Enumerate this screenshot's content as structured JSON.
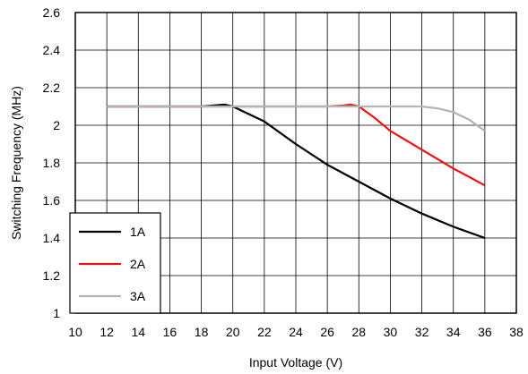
{
  "chart_data": {
    "type": "line",
    "xlabel": "Input Voltage (V)",
    "ylabel": "Switching Frequency (MHz)",
    "xlim": [
      10,
      38
    ],
    "ylim": [
      1,
      2.6
    ],
    "xticks": [
      "10",
      "12",
      "14",
      "16",
      "18",
      "20",
      "22",
      "24",
      "26",
      "28",
      "30",
      "32",
      "34",
      "36",
      "38"
    ],
    "yticks": [
      "1",
      "1.2",
      "1.4",
      "1.6",
      "1.8",
      "2",
      "2.2",
      "2.4",
      "2.6"
    ],
    "grid": true,
    "legend_position": "bottom-left",
    "series": [
      {
        "name": "1A",
        "color": "#000000",
        "x": [
          12,
          14,
          16,
          18,
          19.5,
          20,
          21,
          22,
          24,
          26,
          28,
          30,
          32,
          34,
          36
        ],
        "y": [
          2.1,
          2.1,
          2.1,
          2.1,
          2.11,
          2.1,
          2.06,
          2.02,
          1.9,
          1.79,
          1.7,
          1.61,
          1.53,
          1.46,
          1.4
        ]
      },
      {
        "name": "2A",
        "color": "#ee1111",
        "x": [
          12,
          14,
          16,
          18,
          20,
          22,
          24,
          26,
          27,
          27.5,
          28,
          29,
          30,
          32,
          34,
          36
        ],
        "y": [
          2.1,
          2.1,
          2.1,
          2.1,
          2.1,
          2.1,
          2.1,
          2.1,
          2.105,
          2.11,
          2.1,
          2.04,
          1.97,
          1.87,
          1.77,
          1.68
        ]
      },
      {
        "name": "3A",
        "color": "#b4b4b4",
        "x": [
          12,
          14,
          16,
          18,
          20,
          22,
          24,
          26,
          28,
          30,
          31,
          32,
          33,
          34,
          35,
          36
        ],
        "y": [
          2.1,
          2.1,
          2.1,
          2.1,
          2.1,
          2.1,
          2.1,
          2.1,
          2.1,
          2.1,
          2.1,
          2.1,
          2.09,
          2.07,
          2.03,
          1.97
        ]
      }
    ]
  }
}
